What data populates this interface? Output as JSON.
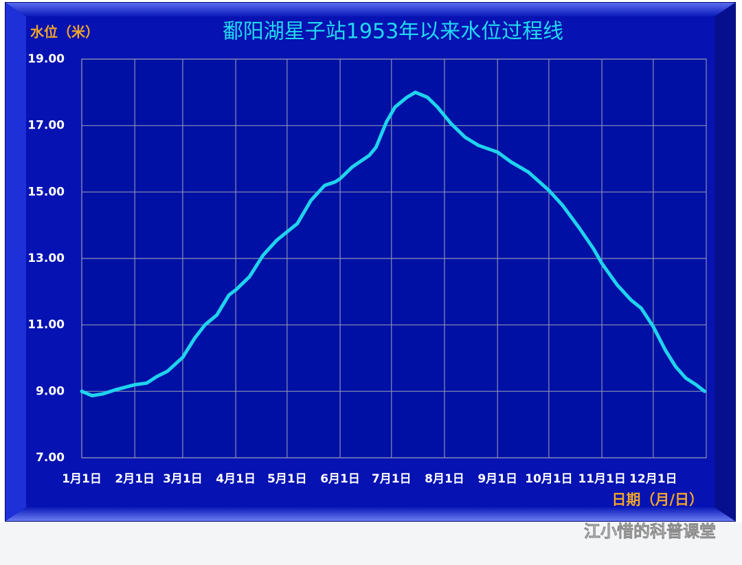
{
  "chart_data": {
    "type": "line",
    "title": "鄱阳湖星子站1953年以来水位过程线",
    "y_label": "水位（米）",
    "x_label": "日期（月/日）",
    "x": [
      1,
      7,
      13,
      21,
      32,
      39,
      45,
      51,
      60,
      67,
      73,
      80,
      87,
      91,
      99,
      107,
      115,
      121,
      127,
      135,
      143,
      149,
      152,
      159,
      169,
      173,
      179,
      184,
      191,
      196,
      203,
      209,
      217,
      225,
      233,
      244,
      252,
      262,
      274,
      282,
      292,
      300,
      305,
      314,
      322,
      328,
      335,
      342,
      348,
      354,
      360,
      365
    ],
    "series": [
      {
        "name": "水位",
        "color": "#1fd3ee",
        "values": [
          9.0,
          8.87,
          8.92,
          9.05,
          9.2,
          9.25,
          9.45,
          9.6,
          10.02,
          10.6,
          11.0,
          11.3,
          11.9,
          12.05,
          12.45,
          13.1,
          13.55,
          13.8,
          14.05,
          14.75,
          15.2,
          15.3,
          15.4,
          15.75,
          16.1,
          16.35,
          17.1,
          17.55,
          17.85,
          18.0,
          17.85,
          17.55,
          17.05,
          16.65,
          16.4,
          16.2,
          15.9,
          15.6,
          15.05,
          14.6,
          13.9,
          13.3,
          12.85,
          12.2,
          11.75,
          11.5,
          10.95,
          10.25,
          9.75,
          9.4,
          9.2,
          9.0
        ]
      }
    ],
    "xlim": [
      1,
      366
    ],
    "xticks": [
      {
        "value": 1,
        "label": "1月1日"
      },
      {
        "value": 32,
        "label": "2月1日"
      },
      {
        "value": 60,
        "label": "3月1日"
      },
      {
        "value": 91,
        "label": "4月1日"
      },
      {
        "value": 121,
        "label": "5月1日"
      },
      {
        "value": 152,
        "label": "6月1日"
      },
      {
        "value": 182,
        "label": "7月1日"
      },
      {
        "value": 213,
        "label": "8月1日"
      },
      {
        "value": 244,
        "label": "9月1日"
      },
      {
        "value": 274,
        "label": "10月1日"
      },
      {
        "value": 305,
        "label": "11月1日"
      },
      {
        "value": 335,
        "label": "12月1日"
      }
    ],
    "ylim": [
      7,
      19
    ],
    "yticks": [
      {
        "value": 7,
        "label": "7.00"
      },
      {
        "value": 9,
        "label": "9.00"
      },
      {
        "value": 11,
        "label": "11.00"
      },
      {
        "value": 13,
        "label": "13.00"
      },
      {
        "value": 15,
        "label": "15.00"
      },
      {
        "value": 17,
        "label": "17.00"
      },
      {
        "value": 19,
        "label": "19.00"
      }
    ],
    "grid": true
  },
  "watermark": "江小惜的科普课堂"
}
